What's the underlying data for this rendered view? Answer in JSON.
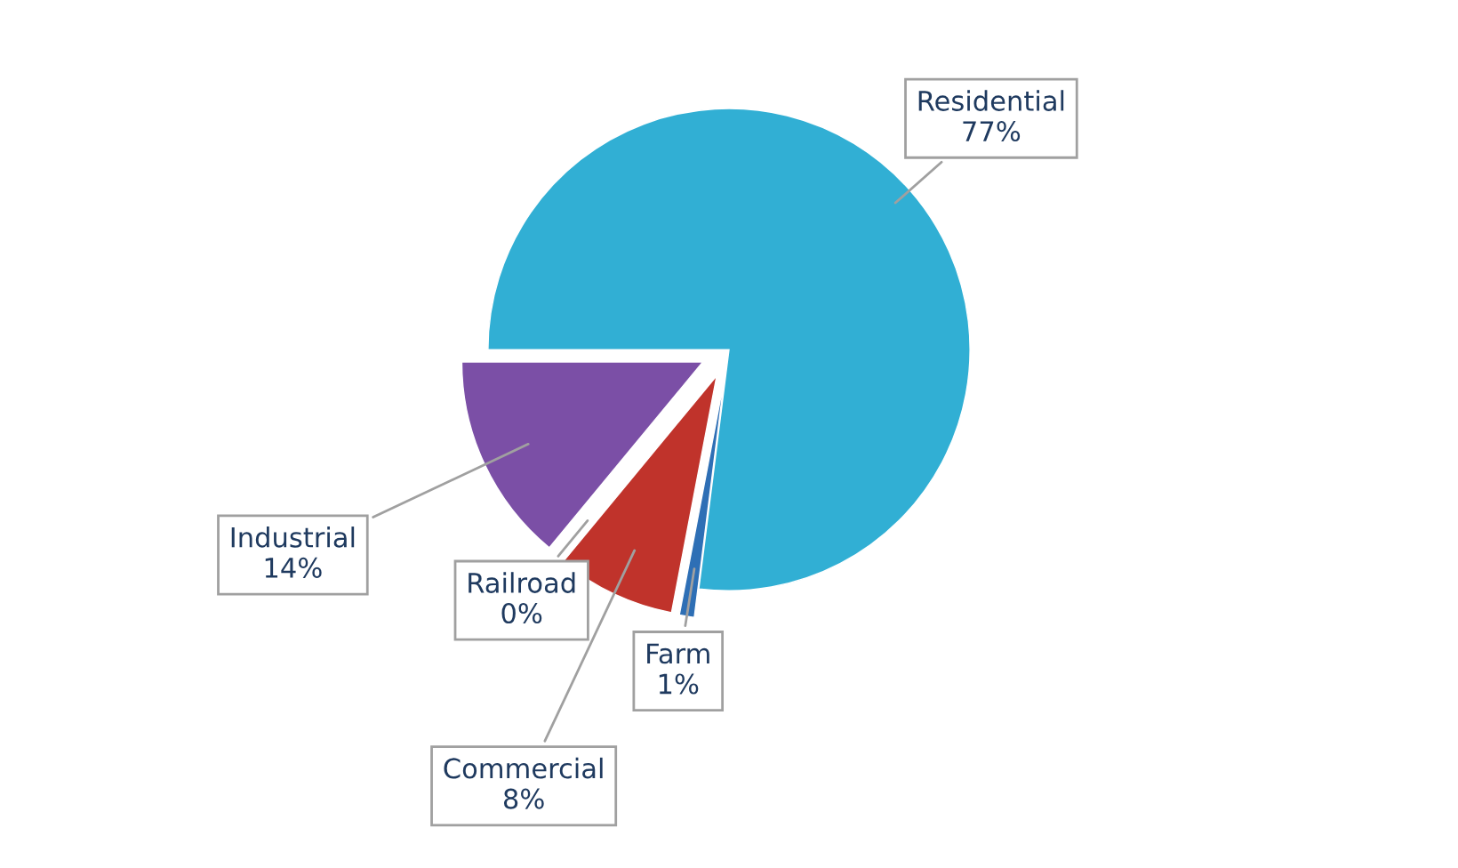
{
  "chart_data": {
    "type": "pie",
    "categories": [
      "Residential",
      "Farm",
      "Commercial",
      "Railroad",
      "Industrial"
    ],
    "values": [
      77,
      1,
      8,
      0,
      14
    ],
    "value_labels": [
      "77%",
      "1%",
      "8%",
      "0%",
      "14%"
    ],
    "colors": [
      "#31afd4",
      "#2e6fb5",
      "#c0332b",
      "#5f7f1e",
      "#7b4fa6"
    ]
  }
}
